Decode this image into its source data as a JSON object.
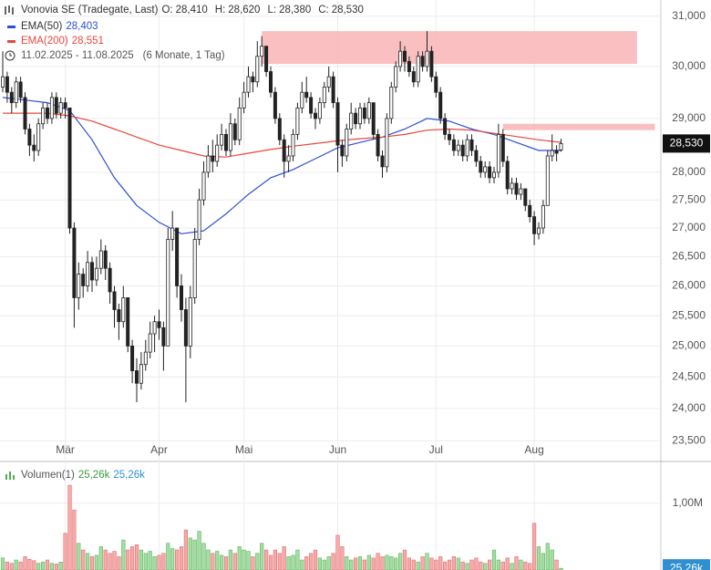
{
  "chart_data": {
    "type": "candlestick",
    "title": "Vonovia SE (Tradegate, Last)",
    "ohlc": [
      {
        "name": "O:",
        "value": 28410,
        "value_label": "28,410"
      },
      {
        "name": "H:",
        "value": 28620,
        "value_label": "28,620"
      },
      {
        "name": "L:",
        "value": 28380,
        "value_label": "28,380"
      },
      {
        "name": "C:",
        "value": 28530,
        "value_label": "28,530"
      }
    ],
    "period": "11.02.2025 - 11.08.2025",
    "span": "(6 Monate, 1 Tag)",
    "log_scale": true,
    "grid": true,
    "ylim": [
      23200,
      31330
    ],
    "yticks": [
      {
        "value": 23500,
        "label": "23,500"
      },
      {
        "value": 24000,
        "label": "24,000"
      },
      {
        "value": 24500,
        "label": "24,500"
      },
      {
        "value": 25000,
        "label": "25,000"
      },
      {
        "value": 25500,
        "label": "25,500"
      },
      {
        "value": 26000,
        "label": "26,000"
      },
      {
        "value": 26500,
        "label": "26,500"
      },
      {
        "value": 27000,
        "label": "27,000"
      },
      {
        "value": 27500,
        "label": "27,500"
      },
      {
        "value": 28000,
        "label": "28,000"
      },
      {
        "value": 29000,
        "label": "29,000"
      },
      {
        "value": 30000,
        "label": "30,000"
      },
      {
        "value": 31000,
        "label": "31,000"
      }
    ],
    "categories": [
      null,
      null,
      null,
      null,
      null,
      null,
      null,
      null,
      null,
      null,
      null,
      null,
      null,
      null,
      "Mär",
      null,
      null,
      null,
      null,
      null,
      null,
      null,
      null,
      null,
      null,
      null,
      null,
      null,
      null,
      null,
      null,
      null,
      null,
      null,
      null,
      "Apr",
      null,
      null,
      null,
      null,
      null,
      null,
      null,
      null,
      null,
      null,
      null,
      null,
      null,
      null,
      null,
      null,
      null,
      null,
      "Mai",
      null,
      null,
      null,
      null,
      null,
      null,
      null,
      null,
      null,
      null,
      null,
      null,
      null,
      null,
      null,
      null,
      null,
      null,
      null,
      null,
      "Jun",
      null,
      null,
      null,
      null,
      null,
      null,
      null,
      null,
      null,
      null,
      null,
      null,
      null,
      null,
      null,
      null,
      null,
      null,
      null,
      null,
      null,
      "Jul",
      null,
      null,
      null,
      null,
      null,
      null,
      null,
      null,
      null,
      null,
      null,
      null,
      null,
      null,
      null,
      null,
      null,
      null,
      null,
      null,
      null,
      "Aug",
      null,
      null,
      null,
      null,
      null,
      null
    ],
    "candles": [
      [
        29600,
        30300,
        29500,
        29800
      ],
      [
        29800,
        29900,
        29300,
        29500
      ],
      [
        29500,
        29600,
        29100,
        29300
      ],
      [
        29300,
        29800,
        29200,
        29700
      ],
      [
        29700,
        29800,
        29300,
        29400
      ],
      [
        29400,
        29500,
        28700,
        28800
      ],
      [
        28800,
        28900,
        28300,
        28500
      ],
      [
        28500,
        28700,
        28200,
        28400
      ],
      [
        28400,
        29000,
        28300,
        28900
      ],
      [
        28900,
        29300,
        28800,
        29200
      ],
      [
        29200,
        29300,
        28900,
        29000
      ],
      [
        29000,
        29500,
        28900,
        29400
      ],
      [
        29400,
        29500,
        29000,
        29100
      ],
      [
        29100,
        29400,
        29000,
        29300
      ],
      [
        29300,
        29400,
        29000,
        29200
      ],
      [
        29200,
        29200,
        26900,
        27000
      ],
      [
        27000,
        27100,
        25300,
        25800
      ],
      [
        25800,
        26400,
        25600,
        26200
      ],
      [
        26200,
        26300,
        25800,
        26000
      ],
      [
        26000,
        26600,
        25900,
        26400
      ],
      [
        26400,
        26500,
        25900,
        26100
      ],
      [
        26100,
        26500,
        26000,
        26300
      ],
      [
        26300,
        26800,
        26200,
        26600
      ],
      [
        26600,
        26700,
        26100,
        26300
      ],
      [
        26300,
        26400,
        25700,
        25900
      ],
      [
        25900,
        26000,
        25300,
        25600
      ],
      [
        25600,
        25700,
        25100,
        25400
      ],
      [
        25400,
        26000,
        25300,
        25800
      ],
      [
        25800,
        25800,
        24900,
        25000
      ],
      [
        25000,
        25100,
        24400,
        24600
      ],
      [
        24600,
        24800,
        24100,
        24400
      ],
      [
        24400,
        24900,
        24300,
        24700
      ],
      [
        24700,
        25100,
        24600,
        24900
      ],
      [
        24900,
        25400,
        24800,
        25200
      ],
      [
        25200,
        25500,
        24900,
        25400
      ],
      [
        25400,
        25600,
        25100,
        25300
      ],
      [
        25300,
        25400,
        24600,
        25000
      ],
      [
        25000,
        27000,
        25000,
        26800
      ],
      [
        26800,
        27300,
        26600,
        27000
      ],
      [
        27000,
        27000,
        25800,
        26000
      ],
      [
        26000,
        26200,
        25400,
        25600
      ],
      [
        25600,
        25800,
        24100,
        25000
      ],
      [
        25000,
        26000,
        24800,
        25800
      ],
      [
        25800,
        27000,
        25700,
        26800
      ],
      [
        26800,
        27700,
        26700,
        27500
      ],
      [
        27500,
        28200,
        27400,
        28000
      ],
      [
        28000,
        28500,
        27900,
        28300
      ],
      [
        28300,
        28600,
        28000,
        28200
      ],
      [
        28200,
        28700,
        28100,
        28500
      ],
      [
        28500,
        28900,
        28400,
        28700
      ],
      [
        28700,
        28800,
        28300,
        28400
      ],
      [
        28400,
        29100,
        28300,
        28900
      ],
      [
        28900,
        29000,
        28500,
        28600
      ],
      [
        28600,
        29400,
        28500,
        29200
      ],
      [
        29200,
        29700,
        29100,
        29500
      ],
      [
        29500,
        30000,
        29400,
        29800
      ],
      [
        29800,
        29900,
        29500,
        29700
      ],
      [
        29700,
        30500,
        29600,
        30200
      ],
      [
        30200,
        30600,
        30000,
        30400
      ],
      [
        30400,
        30400,
        29800,
        29900
      ],
      [
        29900,
        30000,
        29400,
        29500
      ],
      [
        29500,
        29600,
        28900,
        29000
      ],
      [
        29000,
        29100,
        28500,
        28600
      ],
      [
        28600,
        28700,
        27900,
        28200
      ],
      [
        28200,
        28500,
        28000,
        28300
      ],
      [
        28300,
        28800,
        28200,
        28700
      ],
      [
        28700,
        29300,
        28600,
        29200
      ],
      [
        29200,
        29700,
        29100,
        29500
      ],
      [
        29500,
        29800,
        29300,
        29400
      ],
      [
        29400,
        29500,
        29000,
        29100
      ],
      [
        29100,
        29200,
        28800,
        29000
      ],
      [
        29000,
        29400,
        28900,
        29300
      ],
      [
        29300,
        29700,
        29200,
        29600
      ],
      [
        29600,
        30000,
        29500,
        29800
      ],
      [
        29800,
        29900,
        29200,
        29300
      ],
      [
        29300,
        29400,
        28000,
        28500
      ],
      [
        28500,
        28600,
        28100,
        28300
      ],
      [
        28300,
        28900,
        28200,
        28800
      ],
      [
        28800,
        29300,
        28700,
        29100
      ],
      [
        29100,
        29200,
        28800,
        28900
      ],
      [
        28900,
        29300,
        28800,
        29200
      ],
      [
        29200,
        29300,
        28900,
        29000
      ],
      [
        29000,
        29400,
        28900,
        29300
      ],
      [
        29300,
        29300,
        28600,
        28700
      ],
      [
        28700,
        28800,
        28200,
        28300
      ],
      [
        28300,
        28400,
        27900,
        28100
      ],
      [
        28100,
        29100,
        28000,
        29000
      ],
      [
        29000,
        29700,
        28900,
        29600
      ],
      [
        29600,
        30100,
        29500,
        30000
      ],
      [
        30000,
        30500,
        29900,
        30300
      ],
      [
        30300,
        30400,
        29900,
        30100
      ],
      [
        30100,
        30200,
        29800,
        29900
      ],
      [
        29900,
        30000,
        29600,
        29700
      ],
      [
        29700,
        30300,
        29600,
        30200
      ],
      [
        30200,
        30300,
        29900,
        30000
      ],
      [
        30000,
        30700,
        29900,
        30300
      ],
      [
        30300,
        30400,
        29700,
        29800
      ],
      [
        29800,
        29900,
        29400,
        29500
      ],
      [
        29500,
        29600,
        28900,
        29000
      ],
      [
        29000,
        29100,
        28600,
        28700
      ],
      [
        28700,
        28800,
        28500,
        28600
      ],
      [
        28600,
        28700,
        28300,
        28400
      ],
      [
        28400,
        28600,
        28300,
        28500
      ],
      [
        28500,
        28600,
        28200,
        28300
      ],
      [
        28300,
        28700,
        28200,
        28600
      ],
      [
        28600,
        28700,
        28300,
        28400
      ],
      [
        28400,
        28500,
        28100,
        28200
      ],
      [
        28200,
        28300,
        27900,
        28000
      ],
      [
        28000,
        28200,
        27900,
        28100
      ],
      [
        28100,
        28200,
        27800,
        27900
      ],
      [
        27900,
        28100,
        27800,
        28000
      ],
      [
        28000,
        28900,
        27900,
        28700
      ],
      [
        28700,
        28800,
        28100,
        28200
      ],
      [
        28200,
        28300,
        27600,
        27700
      ],
      [
        27700,
        27900,
        27600,
        27800
      ],
      [
        27800,
        27900,
        27500,
        27600
      ],
      [
        27600,
        27800,
        27500,
        27700
      ],
      [
        27700,
        27700,
        27300,
        27400
      ],
      [
        27400,
        27500,
        27100,
        27200
      ],
      [
        27200,
        27300,
        26700,
        26900
      ],
      [
        26900,
        27100,
        26800,
        27000
      ],
      [
        27000,
        27500,
        26900,
        27400
      ],
      [
        27400,
        28400,
        27400,
        28300
      ],
      [
        28300,
        28700,
        28200,
        28400
      ],
      [
        28400,
        28500,
        28200,
        28350
      ],
      [
        28410,
        28620,
        28380,
        28530
      ]
    ],
    "series": [
      {
        "name": "EMA(50)",
        "color": "#2c4fd8",
        "last_value_label": "28,403",
        "x": [
          0,
          5,
          10,
          15,
          20,
          25,
          30,
          35,
          40,
          45,
          50,
          55,
          60,
          65,
          70,
          75,
          80,
          85,
          90,
          95,
          100,
          105,
          110,
          115,
          120,
          125
        ],
        "values": [
          29400,
          29350,
          29300,
          29150,
          28600,
          27900,
          27400,
          27100,
          26900,
          26950,
          27250,
          27600,
          27900,
          28050,
          28250,
          28450,
          28550,
          28650,
          28800,
          29000,
          28950,
          28800,
          28700,
          28550,
          28400,
          28403
        ]
      },
      {
        "name": "EMA(200)",
        "color": "#e8473b",
        "last_value_label": "28,551",
        "x": [
          0,
          5,
          10,
          15,
          20,
          25,
          30,
          35,
          40,
          45,
          50,
          55,
          60,
          65,
          70,
          75,
          80,
          85,
          90,
          95,
          100,
          105,
          110,
          115,
          120,
          125
        ],
        "values": [
          29100,
          29100,
          29100,
          29050,
          28950,
          28800,
          28650,
          28500,
          28400,
          28300,
          28280,
          28350,
          28420,
          28480,
          28530,
          28580,
          28620,
          28650,
          28700,
          28780,
          28800,
          28780,
          28720,
          28660,
          28600,
          28551
        ]
      }
    ],
    "zones": [
      {
        "x": [
          58,
          142
        ],
        "y": [
          30050,
          30700
        ]
      },
      {
        "x": [
          112,
          146
        ],
        "y": [
          28780,
          28900
        ]
      }
    ],
    "volume": {
      "name": "Volumen(1)",
      "last_value_label": "25,26k",
      "ylim": [
        0,
        1.6
      ],
      "yticks": [
        {
          "value": 1,
          "label": "1,00M"
        }
      ],
      "values": [
        0.18,
        0.12,
        0.1,
        0.15,
        0.12,
        0.2,
        0.16,
        0.14,
        0.1,
        0.12,
        0.15,
        0.1,
        0.09,
        0.12,
        0.55,
        1.27,
        0.9,
        0.4,
        0.3,
        0.25,
        0.2,
        0.22,
        0.35,
        0.3,
        0.25,
        0.28,
        0.2,
        0.45,
        0.3,
        0.35,
        0.38,
        0.3,
        0.25,
        0.28,
        0.2,
        0.22,
        0.25,
        0.4,
        0.32,
        0.3,
        0.35,
        0.6,
        0.48,
        0.45,
        0.58,
        0.4,
        0.3,
        0.25,
        0.28,
        0.22,
        0.2,
        0.3,
        0.25,
        0.35,
        0.3,
        0.28,
        0.2,
        0.25,
        0.4,
        0.3,
        0.22,
        0.3,
        0.25,
        0.35,
        0.2,
        0.22,
        0.3,
        0.15,
        0.2,
        0.25,
        0.3,
        0.18,
        0.15,
        0.2,
        0.25,
        0.52,
        0.35,
        0.2,
        0.15,
        0.18,
        0.2,
        0.15,
        0.22,
        0.18,
        0.25,
        0.2,
        0.22,
        0.2,
        0.18,
        0.25,
        0.3,
        0.18,
        0.15,
        0.12,
        0.2,
        0.25,
        0.18,
        0.15,
        0.2,
        0.12,
        0.15,
        0.2,
        0.18,
        0.12,
        0.1,
        0.15,
        0.18,
        0.12,
        0.1,
        0.15,
        0.3,
        0.15,
        0.12,
        0.18,
        0.1,
        0.2,
        0.15,
        0.12,
        0.1,
        0.7,
        0.35,
        0.25,
        0.4,
        0.3,
        0.15,
        0.02526
      ]
    }
  }
}
